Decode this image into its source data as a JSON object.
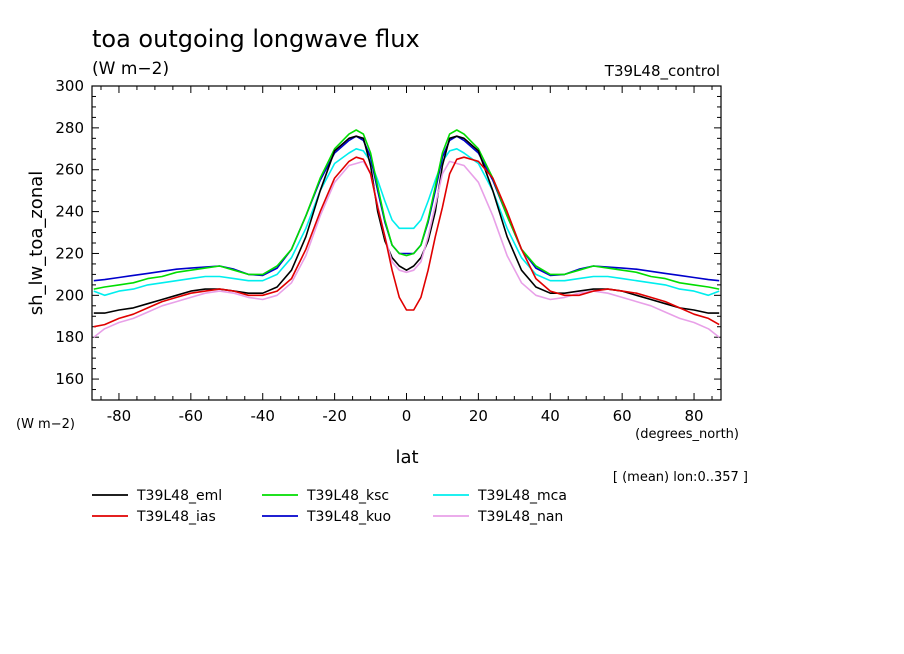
{
  "chart_data": {
    "type": "line",
    "title": "toa outgoing longwave flux",
    "units": "(W m−2)",
    "experiment_label": "T39L48_control",
    "ylabel": "sh_lw_toa_zonal",
    "ylabel_units": "(W m−2)",
    "xlabel": "lat",
    "xlabel_units": "(degrees_north)",
    "averaging_note": "[ (mean) lon:0..357 ]",
    "xlim": [
      -87.5,
      87.5
    ],
    "ylim": [
      150,
      300
    ],
    "xticks": [
      -80,
      -60,
      -40,
      -20,
      0,
      20,
      40,
      60,
      80
    ],
    "yticks": [
      160,
      180,
      200,
      220,
      240,
      260,
      280,
      300
    ],
    "x": [
      -87,
      -84,
      -80,
      -76,
      -72,
      -68,
      -64,
      -60,
      -56,
      -52,
      -48,
      -44,
      -40,
      -36,
      -32,
      -28,
      -24,
      -20,
      -16,
      -14,
      -12,
      -10,
      -8,
      -6,
      -4,
      -2,
      0,
      2,
      4,
      6,
      8,
      10,
      12,
      14,
      16,
      20,
      24,
      28,
      32,
      36,
      40,
      44,
      48,
      52,
      56,
      60,
      64,
      68,
      72,
      76,
      80,
      84,
      87
    ],
    "series": [
      {
        "name": "T39L48_eml",
        "color": "#000000",
        "values": [
          191.5,
          191.5,
          193,
          194,
          196,
          198,
          200,
          202,
          203,
          203,
          202,
          201,
          201,
          204,
          212,
          228,
          250,
          269,
          275,
          276,
          275,
          262,
          240,
          226,
          218,
          214,
          212,
          214,
          218,
          226,
          240,
          262,
          275,
          276,
          275,
          269,
          250,
          228,
          212,
          204,
          201,
          201,
          202,
          203,
          203,
          202,
          200,
          198,
          196,
          194,
          193,
          191.5,
          191.5
        ]
      },
      {
        "name": "T39L48_ksc",
        "color": "#00dd00",
        "values": [
          203,
          204,
          205,
          206,
          208,
          209,
          211,
          212,
          213,
          214,
          212,
          210,
          210,
          214,
          222,
          238,
          256,
          270,
          277,
          279,
          277,
          268,
          252,
          236,
          224,
          220,
          219,
          220,
          224,
          236,
          252,
          268,
          277,
          279,
          277,
          270,
          256,
          238,
          222,
          214,
          210,
          210,
          212,
          214,
          213,
          212,
          211,
          209,
          208,
          206,
          205,
          204,
          203
        ]
      },
      {
        "name": "T39L48_mca",
        "color": "#00eeee",
        "values": [
          202,
          200,
          202,
          203,
          205,
          206,
          207,
          208,
          209,
          209,
          208,
          207,
          207,
          210,
          218,
          232,
          250,
          263,
          268,
          270,
          269,
          264,
          255,
          245,
          236,
          232,
          232,
          232,
          236,
          245,
          255,
          264,
          269,
          270,
          268,
          263,
          250,
          232,
          218,
          210,
          207,
          207,
          208,
          209,
          209,
          208,
          207,
          206,
          205,
          203,
          202,
          200,
          202
        ]
      },
      {
        "name": "T39L48_ias",
        "color": "#e00000",
        "values": [
          185,
          186,
          189,
          191,
          194,
          197,
          199,
          201,
          202,
          203,
          202,
          200,
          200,
          202,
          208,
          222,
          240,
          256,
          264,
          266,
          265,
          258,
          242,
          228,
          212,
          199,
          193,
          193,
          199,
          212,
          228,
          242,
          258,
          265,
          266,
          264,
          256,
          240,
          222,
          208,
          202,
          200,
          200,
          202,
          203,
          202,
          201,
          199,
          197,
          194,
          191,
          189,
          186
        ]
      },
      {
        "name": "T39L48_kuo",
        "color": "#0000cc",
        "values": [
          207,
          207.5,
          208.5,
          209.5,
          210.5,
          211.5,
          212.5,
          213,
          213.5,
          214,
          212.5,
          210,
          209.5,
          213,
          222,
          238,
          255,
          268,
          274,
          276,
          274,
          266,
          250,
          235,
          224,
          220,
          220,
          220,
          224,
          235,
          250,
          266,
          274,
          276,
          274,
          268,
          255,
          238,
          222,
          213,
          209.5,
          210,
          212.5,
          214,
          213.5,
          213,
          212.5,
          211.5,
          210.5,
          209.5,
          208.5,
          207.5,
          207
        ]
      },
      {
        "name": "T39L48_nan",
        "color": "#e8a0e8",
        "values": [
          180,
          184,
          187,
          189,
          192,
          195,
          197,
          199,
          201,
          202,
          201,
          199,
          198,
          200,
          206,
          219,
          238,
          254,
          262,
          263,
          264,
          258,
          243,
          228,
          216,
          212,
          211,
          212,
          216,
          228,
          243,
          258,
          264,
          263,
          262,
          254,
          238,
          219,
          206,
          200,
          198,
          199,
          201,
          202,
          201,
          199,
          197,
          195,
          192,
          189,
          187,
          184,
          180
        ]
      }
    ],
    "legend_order": [
      "T39L48_eml",
      "T39L48_ksc",
      "T39L48_mca",
      "T39L48_ias",
      "T39L48_kuo",
      "T39L48_nan"
    ]
  }
}
